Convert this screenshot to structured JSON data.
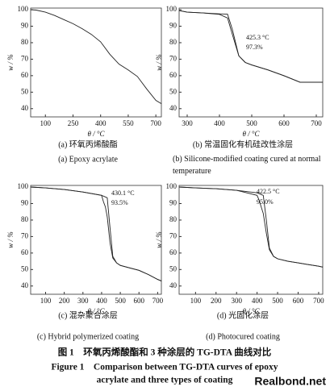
{
  "chart_data": [
    {
      "type": "line",
      "xlabel": "θ / °C",
      "ylabel": "w / %",
      "caption_zh": "(a) 环氧丙烯酸酯",
      "caption_en": "(a) Epoxy acrylate",
      "x": [
        20,
        50,
        100,
        150,
        200,
        250,
        300,
        350,
        400,
        450,
        500,
        550,
        600,
        650,
        700,
        730
      ],
      "series": [
        {
          "color": "#222222",
          "values": [
            100,
            99.8,
            98.5,
            96.5,
            94,
            91.5,
            88.5,
            85,
            80.5,
            73,
            67,
            63.5,
            59.5,
            52,
            45,
            43
          ]
        }
      ],
      "xlim": [
        20,
        730
      ],
      "ylim": [
        35,
        101
      ],
      "xticks": [
        100,
        250,
        400,
        550,
        700
      ],
      "yticks": [
        40,
        50,
        60,
        70,
        80,
        90,
        100
      ],
      "annotations": []
    },
    {
      "type": "line",
      "xlabel": "θ / °C",
      "ylabel": "w / %",
      "caption_zh": "(b) 常温固化有机硅改性涂层",
      "caption_en": "(b) Silicone-modified coating cured at normal temperature",
      "x": [
        275,
        300,
        350,
        400,
        425,
        440,
        460,
        480,
        500,
        550,
        600,
        650,
        700,
        720
      ],
      "series": [
        {
          "color": "#222222",
          "values": [
            99.5,
            98.5,
            98,
            97.5,
            97.3,
            88,
            72,
            68,
            66.5,
            63.5,
            60,
            56,
            56,
            56
          ]
        },
        {
          "color": "#222222",
          "values": [
            99.5,
            98.5,
            98,
            97.2,
            95,
            85,
            72,
            68,
            66.5,
            63.5,
            60,
            56,
            56,
            56
          ]
        }
      ],
      "xlim": [
        275,
        720
      ],
      "ylim": [
        35,
        101
      ],
      "xticks": [
        300,
        400,
        500,
        600,
        700
      ],
      "yticks": [
        40,
        50,
        60,
        70,
        80,
        90,
        100
      ],
      "annotations": [
        {
          "text": "425.3 °C"
        },
        {
          "text": "97.3%"
        }
      ]
    },
    {
      "type": "line",
      "xlabel": "θ / °C",
      "ylabel": "w / %",
      "caption_zh": "(c) 混杂聚合涂层",
      "caption_en": "(c) Hybrid polymerized coating",
      "x": [
        20,
        100,
        200,
        300,
        400,
        410,
        420,
        430,
        445,
        460,
        480,
        500,
        550,
        600,
        650,
        700,
        720
      ],
      "series": [
        {
          "color": "#222222",
          "values": [
            100,
            99.5,
            98.5,
            97,
            95,
            94.5,
            94,
            93.5,
            75,
            58,
            54,
            52.5,
            51,
            49.5,
            47,
            44,
            43
          ]
        },
        {
          "color": "#222222",
          "values": [
            100,
            99.5,
            98.5,
            97,
            95,
            91,
            88,
            82,
            66,
            57,
            54,
            52.5,
            51,
            49.5,
            47,
            44,
            43
          ]
        }
      ],
      "xlim": [
        20,
        720
      ],
      "ylim": [
        35,
        101
      ],
      "xticks": [
        100,
        200,
        300,
        400,
        500,
        600,
        700
      ],
      "yticks": [
        40,
        50,
        60,
        70,
        80,
        90,
        100
      ],
      "annotations": [
        {
          "text": "430.1 °C"
        },
        {
          "text": "93.5%"
        }
      ]
    },
    {
      "type": "line",
      "xlabel": "θ / °C",
      "ylabel": "w / %",
      "caption_zh": "(d) 光固化涂层",
      "caption_en": "(d) Photocured coating",
      "x": [
        20,
        100,
        200,
        300,
        400,
        410,
        420,
        430,
        445,
        460,
        480,
        500,
        550,
        600,
        650,
        700,
        720
      ],
      "series": [
        {
          "color": "#222222",
          "values": [
            100,
            99.5,
            99,
            98,
            96.5,
            96,
            95.5,
            95,
            80,
            63,
            58,
            56.5,
            55,
            54,
            53,
            52,
            51.5
          ]
        },
        {
          "color": "#222222",
          "values": [
            100,
            99.5,
            99,
            98,
            95,
            92,
            88,
            84,
            72,
            62,
            58,
            56.5,
            55,
            54,
            53,
            52,
            51.5
          ]
        }
      ],
      "xlim": [
        20,
        720
      ],
      "ylim": [
        35,
        101
      ],
      "xticks": [
        100,
        200,
        300,
        400,
        500,
        600,
        700
      ],
      "yticks": [
        40,
        50,
        60,
        70,
        80,
        90,
        100
      ],
      "annotations": [
        {
          "text": "422.5 °C"
        },
        {
          "text": "95.0%"
        }
      ]
    }
  ],
  "figure": {
    "caption_zh": "图 1　环氧丙烯酸酯和 3 种涂层的 TG-DTA 曲线对比",
    "caption_en_1": "Figure 1　Comparison between TG-DTA curves of epoxy",
    "caption_en_2": "acrylate and three types of coating"
  },
  "watermark": "Realbond.net"
}
